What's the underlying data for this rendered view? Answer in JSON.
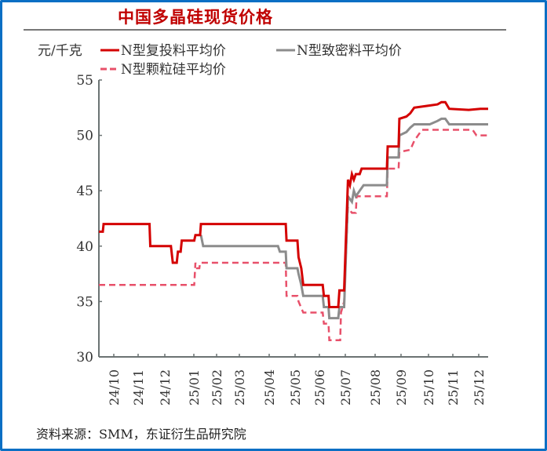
{
  "header": {
    "title": "中国多晶硅现货价格"
  },
  "footer": {
    "source": "资料来源：SMM，东证衍生品研究院"
  },
  "colors": {
    "border": "#0b6fc4",
    "title": "#c00000",
    "series1": "#d40000",
    "series2": "#8c8c8c",
    "series3": "#e8506a"
  },
  "chart_data": {
    "type": "line",
    "title": "中国多晶硅现货价格",
    "ylabel": "元/千克",
    "xlabel": "",
    "ylim": [
      30,
      55
    ],
    "yticks": [
      30,
      35,
      40,
      45,
      50,
      55
    ],
    "grid": false,
    "legend_position": "top",
    "categories": [
      "24/10",
      "24/11",
      "24/12",
      "25/01",
      "25/02",
      "25/03",
      "25/04",
      "25/05",
      "25/06",
      "25/07",
      "25/08",
      "25/09",
      "25/10",
      "25/11",
      "25/12"
    ],
    "series": [
      {
        "name": "N型复投料平均价",
        "style": "solid",
        "color": "#d40000",
        "points": [
          [
            0,
            41.3
          ],
          [
            0.01,
            41.3
          ],
          [
            0.012,
            42
          ],
          [
            0.13,
            42
          ],
          [
            0.132,
            40
          ],
          [
            0.185,
            40
          ],
          [
            0.19,
            38.5
          ],
          [
            0.2,
            38.5
          ],
          [
            0.203,
            39.5
          ],
          [
            0.21,
            39.5
          ],
          [
            0.213,
            40.5
          ],
          [
            0.245,
            40.5
          ],
          [
            0.248,
            41
          ],
          [
            0.26,
            41
          ],
          [
            0.262,
            42
          ],
          [
            0.48,
            42
          ],
          [
            0.482,
            40.5
          ],
          [
            0.51,
            40.5
          ],
          [
            0.513,
            39
          ],
          [
            0.52,
            38
          ],
          [
            0.525,
            36.5
          ],
          [
            0.575,
            36.5
          ],
          [
            0.578,
            35.5
          ],
          [
            0.59,
            35.5
          ],
          [
            0.592,
            34.5
          ],
          [
            0.615,
            34.5
          ],
          [
            0.618,
            36
          ],
          [
            0.63,
            36
          ],
          [
            0.64,
            46
          ],
          [
            0.645,
            45.5
          ],
          [
            0.65,
            46.5
          ],
          [
            0.655,
            46
          ],
          [
            0.66,
            46.5
          ],
          [
            0.67,
            46.5
          ],
          [
            0.675,
            47
          ],
          [
            0.74,
            47
          ],
          [
            0.742,
            49
          ],
          [
            0.77,
            49
          ],
          [
            0.772,
            51.5
          ],
          [
            0.79,
            51.7
          ],
          [
            0.8,
            52
          ],
          [
            0.81,
            52.5
          ],
          [
            0.85,
            52.7
          ],
          [
            0.87,
            52.8
          ],
          [
            0.88,
            53
          ],
          [
            0.89,
            53
          ],
          [
            0.9,
            52.4
          ],
          [
            0.95,
            52.3
          ],
          [
            0.98,
            52.4
          ],
          [
            1.0,
            52.4
          ]
        ]
      },
      {
        "name": "N型致密料平均价",
        "style": "solid",
        "color": "#8c8c8c",
        "points": [
          [
            0.262,
            41
          ],
          [
            0.268,
            40
          ],
          [
            0.46,
            40
          ],
          [
            0.465,
            39.5
          ],
          [
            0.48,
            39.5
          ],
          [
            0.482,
            38
          ],
          [
            0.51,
            38
          ],
          [
            0.513,
            37.5
          ],
          [
            0.52,
            36.5
          ],
          [
            0.525,
            35.5
          ],
          [
            0.575,
            35.5
          ],
          [
            0.578,
            34.5
          ],
          [
            0.59,
            34.5
          ],
          [
            0.592,
            33.5
          ],
          [
            0.615,
            33.5
          ],
          [
            0.618,
            34.5
          ],
          [
            0.63,
            34.5
          ],
          [
            0.64,
            44.5
          ],
          [
            0.65,
            44
          ],
          [
            0.655,
            45
          ],
          [
            0.66,
            44.5
          ],
          [
            0.67,
            45
          ],
          [
            0.68,
            45.5
          ],
          [
            0.74,
            45.5
          ],
          [
            0.742,
            48
          ],
          [
            0.77,
            48
          ],
          [
            0.772,
            50
          ],
          [
            0.79,
            50.3
          ],
          [
            0.8,
            50.7
          ],
          [
            0.81,
            51
          ],
          [
            0.85,
            51
          ],
          [
            0.87,
            51.3
          ],
          [
            0.88,
            51.5
          ],
          [
            0.89,
            51.5
          ],
          [
            0.9,
            51
          ],
          [
            1.0,
            51
          ]
        ]
      },
      {
        "name": "N型颗粒硅平均价",
        "style": "dashed",
        "color": "#e8506a",
        "points": [
          [
            0,
            36.5
          ],
          [
            0.245,
            36.5
          ],
          [
            0.248,
            38.5
          ],
          [
            0.252,
            38
          ],
          [
            0.258,
            38
          ],
          [
            0.26,
            38.5
          ],
          [
            0.48,
            38.5
          ],
          [
            0.482,
            35.5
          ],
          [
            0.51,
            35.5
          ],
          [
            0.513,
            35
          ],
          [
            0.525,
            34
          ],
          [
            0.575,
            34
          ],
          [
            0.578,
            33
          ],
          [
            0.59,
            33
          ],
          [
            0.592,
            31.5
          ],
          [
            0.62,
            31.5
          ],
          [
            0.622,
            34
          ],
          [
            0.63,
            35
          ],
          [
            0.64,
            43.5
          ],
          [
            0.65,
            43
          ],
          [
            0.66,
            43
          ],
          [
            0.662,
            44.5
          ],
          [
            0.74,
            44.5
          ],
          [
            0.742,
            47
          ],
          [
            0.77,
            47
          ],
          [
            0.772,
            48.5
          ],
          [
            0.8,
            48.7
          ],
          [
            0.81,
            49.5
          ],
          [
            0.82,
            50
          ],
          [
            0.83,
            50.5
          ],
          [
            0.96,
            50.5
          ],
          [
            0.97,
            50
          ],
          [
            1.0,
            50
          ]
        ]
      }
    ]
  },
  "legend": {
    "unit": "元/千克",
    "items": [
      {
        "label": "N型复投料平均价"
      },
      {
        "label": "N型致密料平均价"
      },
      {
        "label": "N型颗粒硅平均价"
      }
    ]
  }
}
